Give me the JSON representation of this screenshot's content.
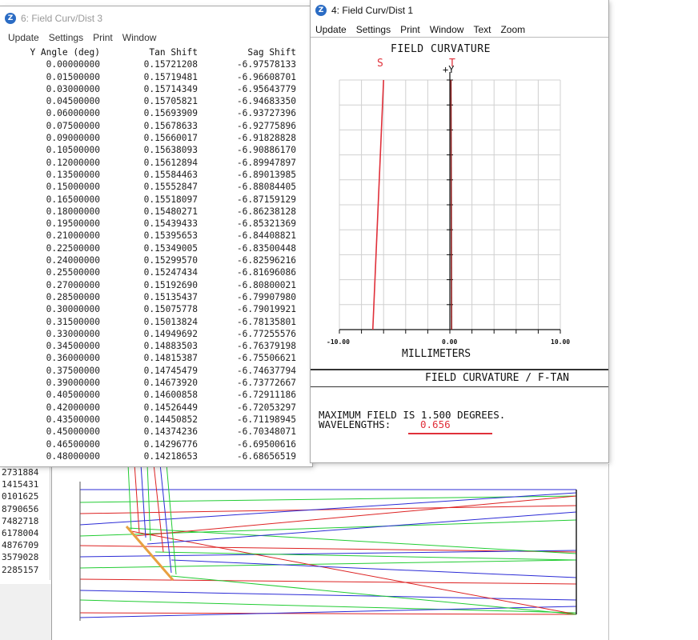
{
  "colors": {
    "red": "#e0303a",
    "dark_red": "#8b1a1a",
    "ray_blue": "#2b2bd6",
    "ray_green": "#22cc33",
    "ray_red": "#dd2222",
    "mirror_orange": "#e8a040"
  },
  "background": {
    "left_values": [
      "2731884",
      "1415431",
      "0101625",
      "8790656",
      "7482718",
      "6178004",
      "4876709",
      "3579028",
      "2285157"
    ]
  },
  "win_fcd3": {
    "title": "6: Field Curv/Dist 3",
    "menu": [
      "Update",
      "Settings",
      "Print",
      "Window"
    ],
    "columns": [
      "Y Angle (deg)",
      "Tan Shift",
      "Sag Shift"
    ],
    "rows": [
      [
        "0.00000000",
        "0.15721208",
        "-6.97578133"
      ],
      [
        "0.01500000",
        "0.15719481",
        "-6.96608701"
      ],
      [
        "0.03000000",
        "0.15714349",
        "-6.95643779"
      ],
      [
        "0.04500000",
        "0.15705821",
        "-6.94683350"
      ],
      [
        "0.06000000",
        "0.15693909",
        "-6.93727396"
      ],
      [
        "0.07500000",
        "0.15678633",
        "-6.92775896"
      ],
      [
        "0.09000000",
        "0.15660017",
        "-6.91828828"
      ],
      [
        "0.10500000",
        "0.15638093",
        "-6.90886170"
      ],
      [
        "0.12000000",
        "0.15612894",
        "-6.89947897"
      ],
      [
        "0.13500000",
        "0.15584463",
        "-6.89013985"
      ],
      [
        "0.15000000",
        "0.15552847",
        "-6.88084405"
      ],
      [
        "0.16500000",
        "0.15518097",
        "-6.87159129"
      ],
      [
        "0.18000000",
        "0.15480271",
        "-6.86238128"
      ],
      [
        "0.19500000",
        "0.15439433",
        "-6.85321369"
      ],
      [
        "0.21000000",
        "0.15395653",
        "-6.84408821"
      ],
      [
        "0.22500000",
        "0.15349005",
        "-6.83500448"
      ],
      [
        "0.24000000",
        "0.15299570",
        "-6.82596216"
      ],
      [
        "0.25500000",
        "0.15247434",
        "-6.81696086"
      ],
      [
        "0.27000000",
        "0.15192690",
        "-6.80800021"
      ],
      [
        "0.28500000",
        "0.15135437",
        "-6.79907980"
      ],
      [
        "0.30000000",
        "0.15075778",
        "-6.79019921"
      ],
      [
        "0.31500000",
        "0.15013824",
        "-6.78135801"
      ],
      [
        "0.33000000",
        "0.14949692",
        "-6.77255576"
      ],
      [
        "0.34500000",
        "0.14883503",
        "-6.76379198"
      ],
      [
        "0.36000000",
        "0.14815387",
        "-6.75506621"
      ],
      [
        "0.37500000",
        "0.14745479",
        "-6.74637794"
      ],
      [
        "0.39000000",
        "0.14673920",
        "-6.73772667"
      ],
      [
        "0.40500000",
        "0.14600858",
        "-6.72911186"
      ],
      [
        "0.42000000",
        "0.14526449",
        "-6.72053297"
      ],
      [
        "0.43500000",
        "0.14450852",
        "-6.71198945"
      ],
      [
        "0.45000000",
        "0.14374236",
        "-6.70348071"
      ],
      [
        "0.46500000",
        "0.14296776",
        "-6.69500616"
      ],
      [
        "0.48000000",
        "0.14218653",
        "-6.68656519"
      ]
    ]
  },
  "win_fcd1": {
    "title": "4: Field Curv/Dist 1",
    "menu": [
      "Update",
      "Settings",
      "Print",
      "Window",
      "Text",
      "Zoom"
    ],
    "plot_title": "FIELD CURVATURE",
    "label_s": "S",
    "label_t": "T",
    "label_plus_y": "+Y",
    "x_ticks": [
      "-10.00",
      "0.00",
      "10.00"
    ],
    "x_label": "MILLIMETERS",
    "footer_title": "FIELD CURVATURE / F-TAN",
    "footer_line1": "MAXIMUM FIELD IS 1.500 DEGREES.",
    "footer_line2_label": "WAVELENGTHS:",
    "footer_wavelength": "0.656"
  },
  "chart_data": {
    "type": "line",
    "title": "FIELD CURVATURE",
    "xlabel": "MILLIMETERS",
    "ylabel": "+Y",
    "xlim": [
      -10,
      10
    ],
    "ylim": [
      0,
      1.5
    ],
    "x_ticks": [
      -10,
      0,
      10
    ],
    "grid": true,
    "series": [
      {
        "name": "S",
        "color": "#e0303a",
        "points": [
          [
            -6.976,
            0
          ],
          [
            -6.0,
            1.5
          ]
        ]
      },
      {
        "name": "T",
        "color": "#8b1a1a",
        "points": [
          [
            0.157,
            0
          ],
          [
            0.1,
            1.5
          ]
        ]
      }
    ]
  }
}
